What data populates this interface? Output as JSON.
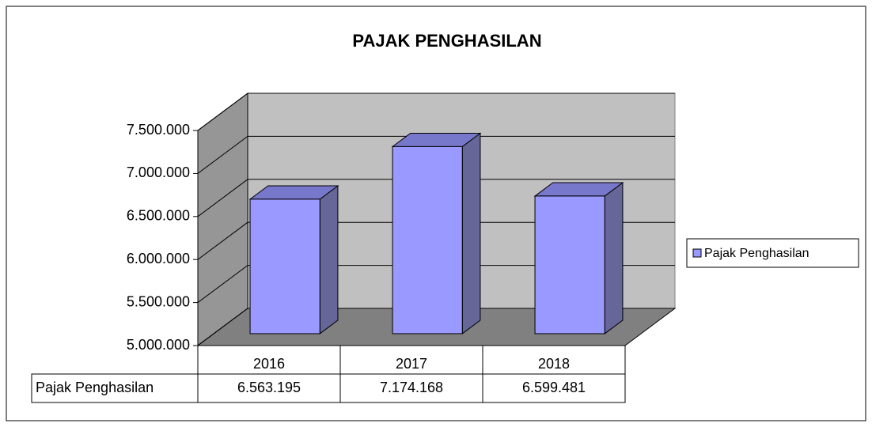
{
  "chart_data": {
    "type": "bar3d",
    "title": "PAJAK PENGHASILAN",
    "categories": [
      "2016",
      "2017",
      "2018"
    ],
    "series": [
      {
        "name": "Pajak Penghasilan",
        "color": "#9999ff",
        "values": [
          6563195,
          7174168,
          6599481
        ],
        "value_labels": [
          "6.563.195",
          "7.174.168",
          "6.599.481"
        ]
      }
    ],
    "ylim": [
      5000000,
      7500000
    ],
    "yticks": [
      {
        "value": 5000000,
        "label": "5.000.000"
      },
      {
        "value": 5500000,
        "label": "5.500.000"
      },
      {
        "value": 6000000,
        "label": "6.000.000"
      },
      {
        "value": 6500000,
        "label": "6.500.000"
      },
      {
        "value": 7000000,
        "label": "7.000.000"
      },
      {
        "value": 7500000,
        "label": "7.500.000"
      }
    ],
    "grid": true,
    "legend": "right",
    "data_table": true
  }
}
